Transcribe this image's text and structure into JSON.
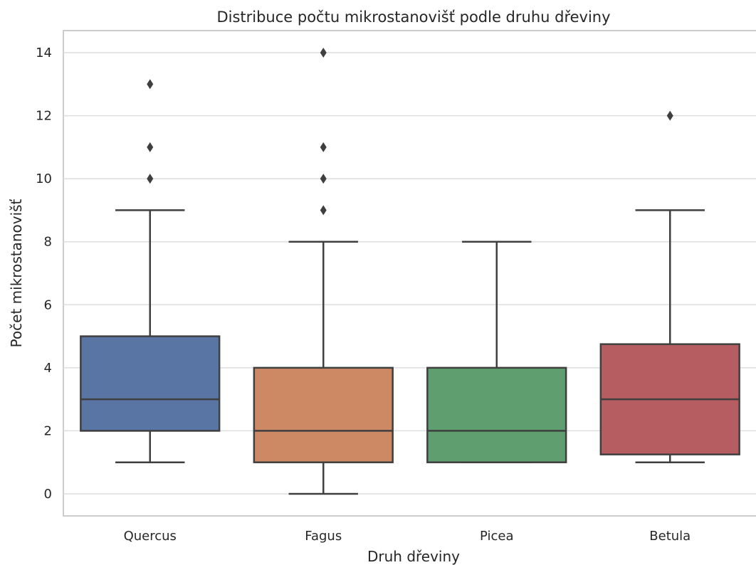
{
  "chart_data": {
    "type": "box",
    "title": "Distribuce počtu mikrostanovišť podle druhu dřeviny",
    "xlabel": "Druh dřeviny",
    "ylabel": "Počet mikrostanovišť",
    "ylim": [
      -0.7,
      14.7
    ],
    "yticks": [
      0,
      2,
      4,
      6,
      8,
      10,
      12,
      14
    ],
    "grid": true,
    "legend": "none",
    "categories": [
      "Quercus",
      "Fagus",
      "Picea",
      "Betula"
    ],
    "boxes": [
      {
        "category": "Quercus",
        "whisker_low": 1,
        "q1": 2,
        "median": 3,
        "q3": 5,
        "whisker_high": 9,
        "outliers": [
          10,
          11,
          13
        ],
        "color": "#5975a4"
      },
      {
        "category": "Fagus",
        "whisker_low": 0,
        "q1": 1,
        "median": 2,
        "q3": 4,
        "whisker_high": 8,
        "outliers": [
          9,
          10,
          11,
          14
        ],
        "color": "#cc8963"
      },
      {
        "category": "Picea",
        "whisker_low": 1,
        "q1": 1,
        "median": 2,
        "q3": 4,
        "whisker_high": 8,
        "outliers": [],
        "color": "#5f9e6e"
      },
      {
        "category": "Betula",
        "whisker_low": 1,
        "q1": 1.25,
        "median": 3,
        "q3": 4.75,
        "whisker_high": 9,
        "outliers": [
          12
        ],
        "color": "#b55d60"
      }
    ]
  }
}
